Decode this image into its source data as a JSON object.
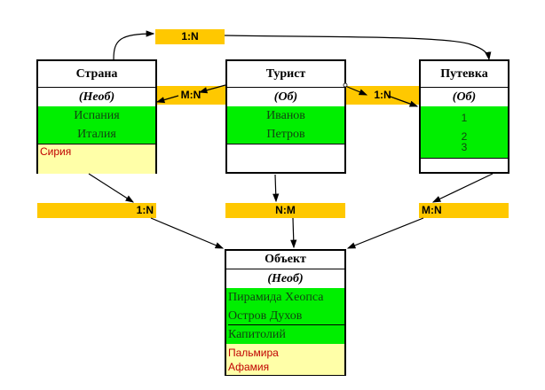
{
  "relations": {
    "top": "1:N",
    "country_tourist": "M:N",
    "tourist_voucher": "1:N",
    "country_object": "1:N",
    "tourist_object": "N:M",
    "voucher_object": "M:N"
  },
  "entities": {
    "country": {
      "title": "Страна",
      "type": "(Необ)",
      "green": [
        "Испания",
        "Италия"
      ],
      "yellow": [
        "Сирия"
      ]
    },
    "tourist": {
      "title": "Турист",
      "type": "(Об)",
      "green": [
        "Иванов",
        "Петров"
      ]
    },
    "voucher": {
      "title": "Путевка",
      "type": "(Об)",
      "green": [
        "1",
        "2",
        "3"
      ]
    },
    "object": {
      "title": "Объект",
      "type": "(Необ)",
      "green": [
        "Пирамида Хеопса",
        "Остров Духов",
        "Капитолий"
      ],
      "yellow": [
        "Пальмира",
        "Афамия"
      ]
    }
  },
  "colors": {
    "relation": "#ffc800",
    "mandatory_member": "#00ef00",
    "optional_member": "#ffffa8",
    "optional_text": "#c00000"
  }
}
